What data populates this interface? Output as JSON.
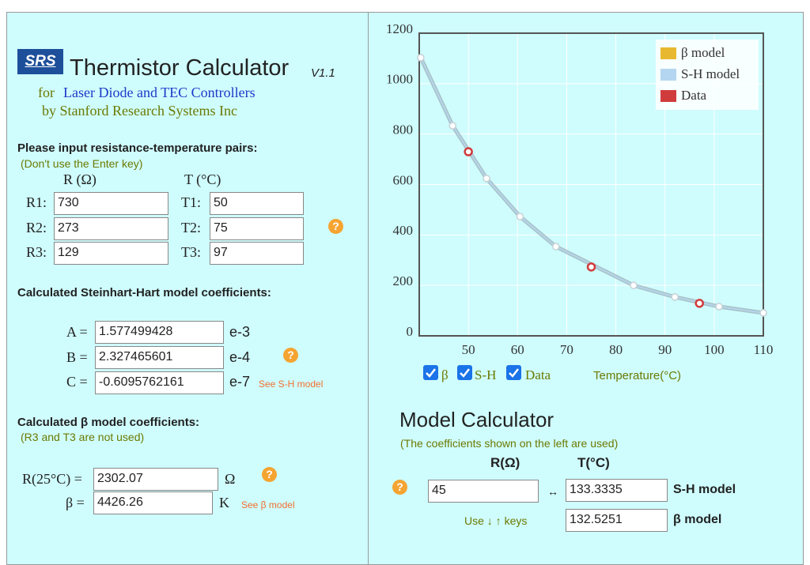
{
  "header": {
    "logo": "SRS",
    "title": "Thermistor Calculator",
    "version": "V1.1",
    "subtitle_prefix": "for",
    "subtitle_main": "Laser Diode and TEC Controllers",
    "subtitle2": "by Stanford Research Systems Inc"
  },
  "help_icon": "?",
  "inputs": {
    "heading": "Please input resistance-temperature pairs:",
    "note": "(Don't use the Enter key)",
    "r_header": "R (Ω)",
    "t_header": "T (°C)",
    "rows": [
      {
        "r_label": "R1:",
        "r": "730",
        "t_label": "T1:",
        "t": "50"
      },
      {
        "r_label": "R2:",
        "r": "273",
        "t_label": "T2:",
        "t": "75"
      },
      {
        "r_label": "R3:",
        "r": "129",
        "t_label": "T3:",
        "t": "97"
      }
    ]
  },
  "sh": {
    "heading": "Calculated Steinhart-Hart model coefficients:",
    "coefficients": [
      {
        "label": "A =",
        "value": "1.577499428",
        "exp": "e-3"
      },
      {
        "label": "B =",
        "value": "2.327465601",
        "exp": "e-4"
      },
      {
        "label": "C =",
        "value": "-0.6095762161",
        "exp": "e-7"
      }
    ],
    "link": "See S-H model"
  },
  "beta": {
    "heading": "Calculated β model coefficients:",
    "note": "(R3 and T3 are not used)",
    "coefficients": [
      {
        "label": "R(25°C) =",
        "value": "2302.07",
        "unit": "Ω"
      },
      {
        "label": "β =",
        "value": "4426.26",
        "unit": "K"
      }
    ],
    "link": "See β model"
  },
  "calculator": {
    "title": "Model Calculator",
    "note": "(The coefficients shown on the left are used)",
    "r_header": "R(Ω)",
    "t_header": "T(°C)",
    "r_value": "45",
    "arrow": "↔",
    "sh_value": "133.3335",
    "sh_label": "S-H model",
    "beta_value": "132.5251",
    "beta_label": "β model",
    "hint": "Use ↓ ↑ keys"
  },
  "chart_data": {
    "type": "line",
    "xlim": [
      40,
      110
    ],
    "xticks": [
      50,
      60,
      70,
      80,
      90,
      100,
      110
    ],
    "ylim": [
      0,
      1200
    ],
    "yticks": [
      0,
      200,
      400,
      600,
      800,
      1000,
      1200
    ],
    "grid": true,
    "legend": "top-right",
    "x_label": "Temperature(°C)",
    "toggles": [
      "β",
      "S-H",
      "Data"
    ],
    "series": [
      {
        "name": "β model",
        "color": "#e8b830",
        "style": "line",
        "x": [
          40.3,
          46.8,
          53.7,
          60.5,
          67.8,
          83.6,
          92,
          101,
          110
        ],
        "values": [
          1103,
          833,
          624,
          473,
          354,
          200,
          154,
          116,
          91
        ]
      },
      {
        "name": "S-H model",
        "color": "#b4d6f0",
        "style": "line",
        "x": [
          40.3,
          46.8,
          53.7,
          60.5,
          67.8,
          83.6,
          92,
          101,
          110
        ],
        "values": [
          1103,
          833,
          624,
          473,
          354,
          200,
          154,
          116,
          91
        ]
      },
      {
        "name": "Data",
        "color": "#d03c3c",
        "style": "markers",
        "x": [
          50,
          75,
          97
        ],
        "values": [
          730,
          273,
          129
        ]
      }
    ]
  }
}
